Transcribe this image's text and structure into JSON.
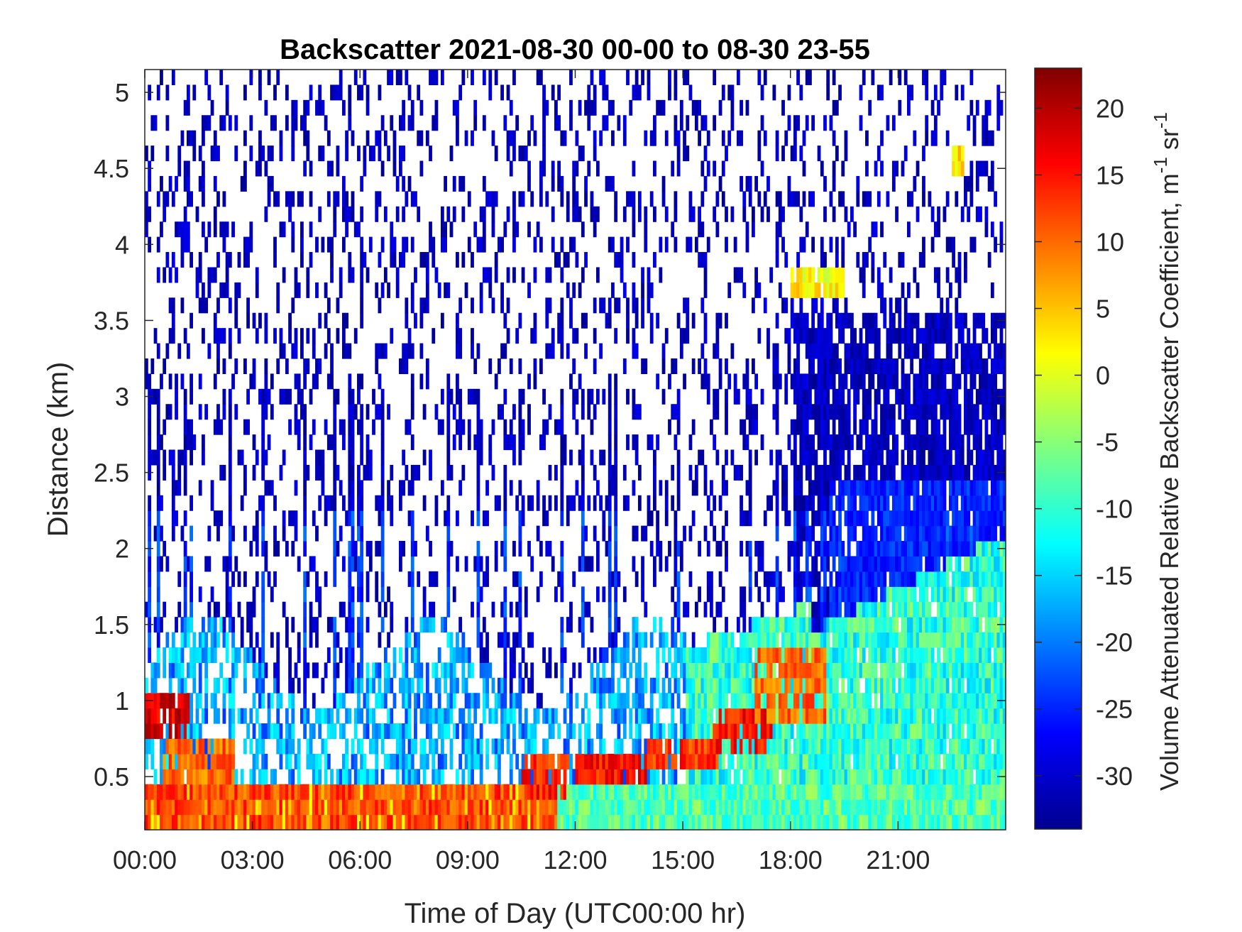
{
  "chart_data": {
    "type": "heatmap",
    "title": "Backscatter 2021-08-30 00-00 to 08-30 23-55",
    "xlabel": "Time of Day (UTC00:00 hr)",
    "ylabel": "Distance (km)",
    "colorbar_label_main": "Volume Attenuated Relative Backscatter Coefficient, m",
    "colorbar_label_sup1": "-1",
    "colorbar_label_mid": " sr",
    "colorbar_label_sup2": "-1",
    "x_ticks": [
      "00:00",
      "03:00",
      "06:00",
      "09:00",
      "12:00",
      "15:00",
      "18:00",
      "21:00"
    ],
    "x_tick_hours": [
      0,
      3,
      6,
      9,
      12,
      15,
      18,
      21
    ],
    "xlim_hours": [
      0,
      24
    ],
    "y_ticks": [
      "0.5",
      "1",
      "1.5",
      "2",
      "2.5",
      "3",
      "3.5",
      "4",
      "4.5",
      "5"
    ],
    "y_tick_values": [
      0.5,
      1,
      1.5,
      2,
      2.5,
      3,
      3.5,
      4,
      4.5,
      5
    ],
    "ylim_km": [
      0.15,
      5.15
    ],
    "colorbar_ticks": [
      "20",
      "15",
      "10",
      "5",
      "0",
      "-5",
      "-10",
      "-15",
      "-20",
      "-25",
      "-30"
    ],
    "colorbar_tick_values": [
      20,
      15,
      10,
      5,
      0,
      -5,
      -10,
      -15,
      -20,
      -25,
      -30
    ],
    "clim": [
      -34,
      23
    ],
    "colormap": "jet",
    "features": [
      {
        "t0": 0.0,
        "t1": 11.5,
        "z0": 0.15,
        "z1": 0.45,
        "v": 12
      },
      {
        "t0": 0.0,
        "t1": 1.2,
        "z0": 0.7,
        "z1": 1.0,
        "v": 18
      },
      {
        "t0": 0.5,
        "t1": 2.5,
        "z0": 0.45,
        "z1": 0.7,
        "v": 10
      },
      {
        "t0": 10.5,
        "t1": 11.8,
        "z0": 0.35,
        "z1": 0.6,
        "v": 14
      },
      {
        "t0": 12.0,
        "t1": 14.0,
        "z0": 0.45,
        "z1": 0.6,
        "v": 15
      },
      {
        "t0": 14.0,
        "t1": 16.0,
        "z0": 0.5,
        "z1": 0.7,
        "v": 13
      },
      {
        "t0": 15.8,
        "t1": 17.5,
        "z0": 0.6,
        "z1": 0.95,
        "v": 15
      },
      {
        "t0": 17.0,
        "t1": 19.0,
        "z0": 0.8,
        "z1": 1.3,
        "v": 10
      },
      {
        "t0": 18.0,
        "t1": 19.5,
        "z0": 3.6,
        "z1": 3.85,
        "v": 2
      },
      {
        "t0": 22.5,
        "t1": 22.8,
        "z0": 4.4,
        "z1": 4.6,
        "v": 3
      }
    ]
  }
}
